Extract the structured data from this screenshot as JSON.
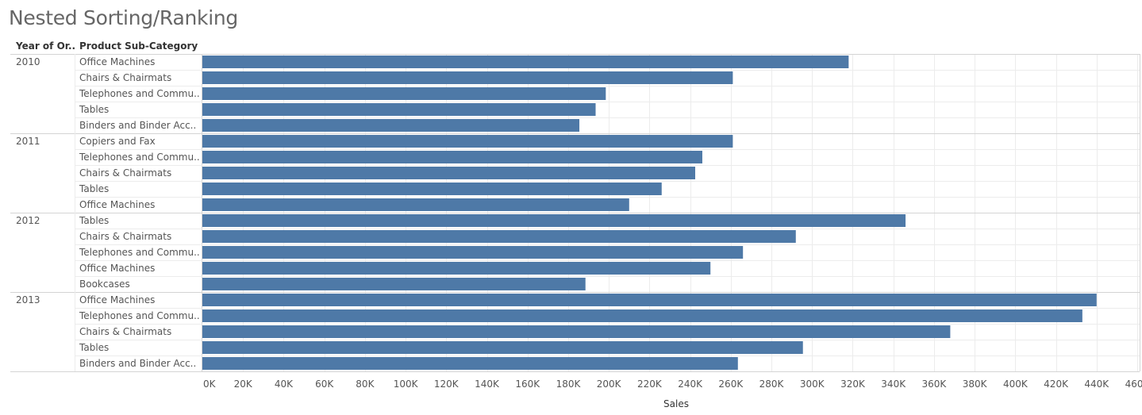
{
  "title": "Nested Sorting/Ranking",
  "headers": {
    "year": "Year of Or..",
    "subcategory": "Product Sub-Category"
  },
  "colors": {
    "bar": "#4e79a7",
    "grid": "#ececec",
    "separator": "#d4d4d4",
    "text": "#555555"
  },
  "chart_data": {
    "type": "bar",
    "orientation": "horizontal",
    "title": "Nested Sorting/Ranking",
    "xlabel": "Sales",
    "xlim": [
      0,
      460000
    ],
    "xticks": [
      0,
      20000,
      40000,
      60000,
      80000,
      100000,
      120000,
      140000,
      160000,
      180000,
      200000,
      220000,
      240000,
      260000,
      280000,
      300000,
      320000,
      340000,
      360000,
      380000,
      400000,
      420000,
      440000,
      460000
    ],
    "xtick_labels": [
      "0K",
      "20K",
      "40K",
      "60K",
      "80K",
      "100K",
      "120K",
      "140K",
      "160K",
      "180K",
      "200K",
      "220K",
      "240K",
      "260K",
      "280K",
      "300K",
      "320K",
      "340K",
      "360K",
      "380K",
      "400K",
      "420K",
      "440K",
      "460K"
    ],
    "grid": true,
    "groups": [
      {
        "year": "2010",
        "rows": [
          {
            "label": "Office Machines",
            "value": 318000
          },
          {
            "label": "Chairs & Chairmats",
            "value": 261000
          },
          {
            "label": "Telephones and Commu..",
            "value": 198500
          },
          {
            "label": "Tables",
            "value": 193500
          },
          {
            "label": "Binders and Binder Acc..",
            "value": 185500
          }
        ]
      },
      {
        "year": "2011",
        "rows": [
          {
            "label": "Copiers and Fax",
            "value": 261000
          },
          {
            "label": "Telephones and Commu..",
            "value": 246000
          },
          {
            "label": "Chairs & Chairmats",
            "value": 242500
          },
          {
            "label": "Tables",
            "value": 226000
          },
          {
            "label": "Office Machines",
            "value": 210000
          }
        ]
      },
      {
        "year": "2012",
        "rows": [
          {
            "label": "Tables",
            "value": 346000
          },
          {
            "label": "Chairs & Chairmats",
            "value": 292000
          },
          {
            "label": "Telephones and Commu..",
            "value": 266000
          },
          {
            "label": "Office Machines",
            "value": 250000
          },
          {
            "label": "Bookcases",
            "value": 188500
          }
        ]
      },
      {
        "year": "2013",
        "rows": [
          {
            "label": "Office Machines",
            "value": 440000
          },
          {
            "label": "Telephones and Commu..",
            "value": 433000
          },
          {
            "label": "Chairs & Chairmats",
            "value": 368000
          },
          {
            "label": "Tables",
            "value": 295500
          },
          {
            "label": "Binders and Binder Acc..",
            "value": 263500
          }
        ]
      }
    ]
  }
}
